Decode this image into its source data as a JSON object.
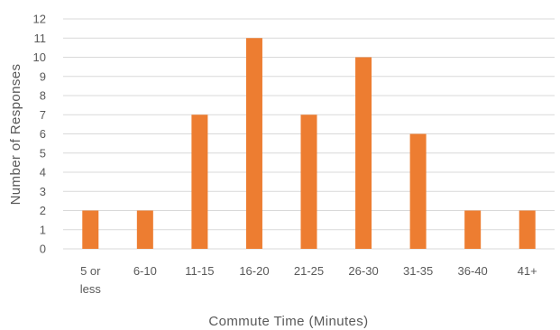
{
  "chart_data": {
    "type": "bar",
    "categories": [
      "5 or less",
      "6-10",
      "11-15",
      "16-20",
      "21-25",
      "26-30",
      "31-35",
      "36-40",
      "41+"
    ],
    "category_lines": [
      [
        "5 or",
        "less"
      ],
      [
        "6-10"
      ],
      [
        "11-15"
      ],
      [
        "16-20"
      ],
      [
        "21-25"
      ],
      [
        "26-30"
      ],
      [
        "31-35"
      ],
      [
        "36-40"
      ],
      [
        "41+"
      ]
    ],
    "values": [
      2,
      2,
      7,
      11,
      7,
      10,
      6,
      2,
      2
    ],
    "title": "",
    "xlabel": "Commute Time (Minutes)",
    "ylabel": "Number of Responses",
    "ylim": [
      0,
      12
    ],
    "yticks": [
      0,
      1,
      2,
      3,
      4,
      5,
      6,
      7,
      8,
      9,
      10,
      11,
      12
    ],
    "grid": true,
    "legend": "none",
    "bar_color": "#ed7d31",
    "grid_color": "#d9d9d9",
    "text_color": "#595959"
  }
}
